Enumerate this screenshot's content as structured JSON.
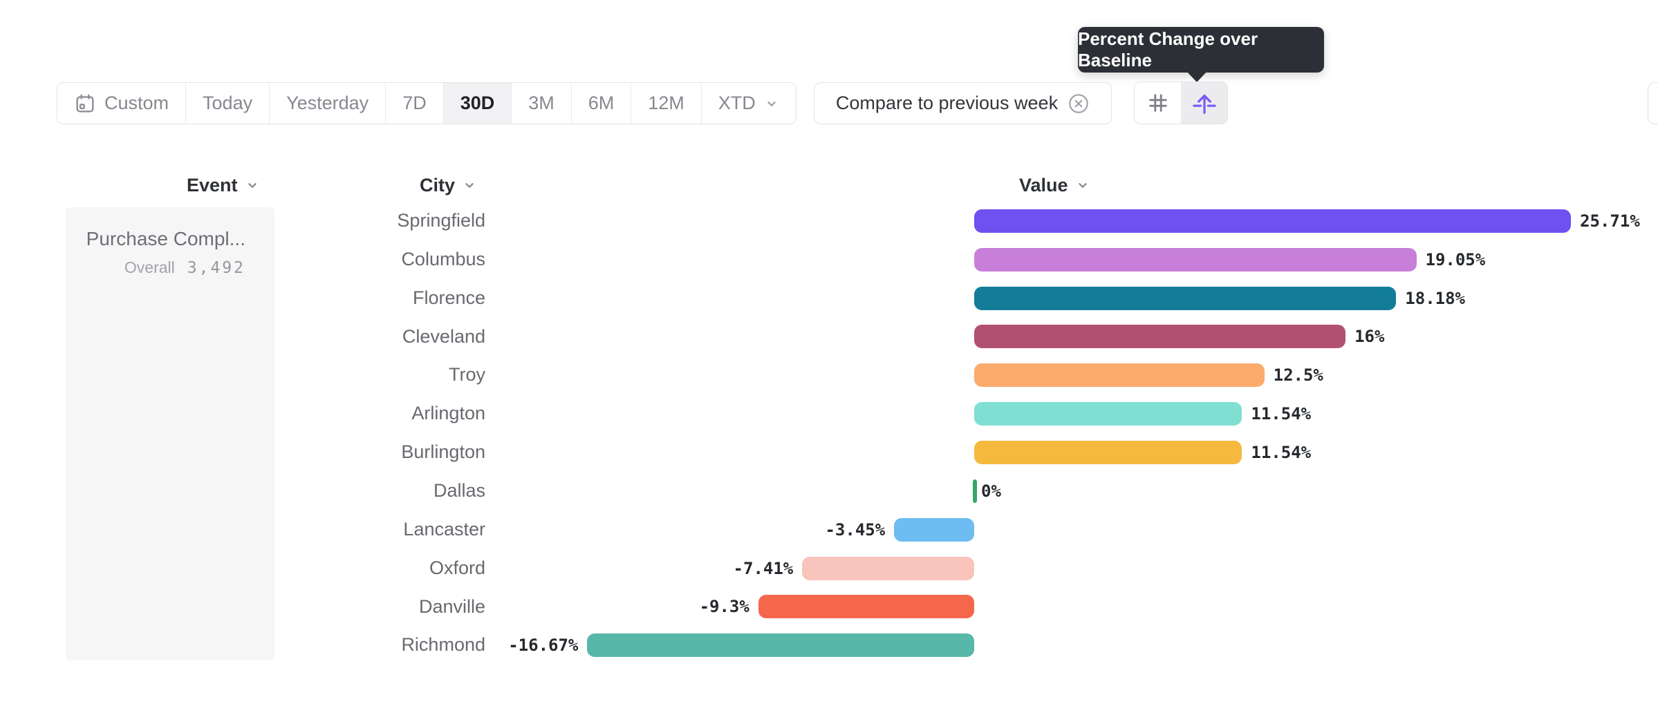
{
  "tooltip": {
    "text": "Percent Change over Baseline"
  },
  "toolbar": {
    "date_ranges": [
      {
        "label": "Custom",
        "icon": "calendar-icon",
        "active": false
      },
      {
        "label": "Today",
        "active": false
      },
      {
        "label": "Yesterday",
        "active": false
      },
      {
        "label": "7D",
        "active": false
      },
      {
        "label": "30D",
        "active": true
      },
      {
        "label": "3M",
        "active": false
      },
      {
        "label": "6M",
        "active": false
      },
      {
        "label": "12M",
        "active": false
      },
      {
        "label": "XTD",
        "chevron": true,
        "active": false
      }
    ],
    "compare": {
      "label": "Compare to previous week",
      "icon": "close-circle-icon"
    },
    "view_toggle": [
      {
        "name": "number-view",
        "icon": "hash-icon",
        "active": false
      },
      {
        "name": "baseline-change-view",
        "icon": "arrow-up-baseline-icon",
        "active": true
      }
    ],
    "accent_color": "#7b5cf5"
  },
  "columns": [
    {
      "label": "Event"
    },
    {
      "label": "City"
    },
    {
      "label": "Value"
    }
  ],
  "event_panel": {
    "event_name": "Purchase Compl...",
    "overall_label": "Overall",
    "overall_value": "3,492"
  },
  "chart_data": {
    "type": "bar",
    "orientation": "horizontal",
    "title": "Percent Change over Baseline",
    "xlabel": "",
    "ylabel": "",
    "baseline": 0,
    "categories": [
      "Springfield",
      "Columbus",
      "Florence",
      "Cleveland",
      "Troy",
      "Arlington",
      "Burlington",
      "Dallas",
      "Lancaster",
      "Oxford",
      "Danville",
      "Richmond"
    ],
    "values": [
      25.71,
      19.05,
      18.18,
      16,
      12.5,
      11.54,
      11.54,
      0,
      -3.45,
      -7.41,
      -9.3,
      -16.67
    ],
    "labels": [
      "25.71%",
      "19.05%",
      "18.18%",
      "16%",
      "12.5%",
      "11.54%",
      "11.54%",
      "0%",
      "-3.45%",
      "-7.41%",
      "-9.3%",
      "-16.67%"
    ],
    "colors": [
      "#6e51f1",
      "#c77fd9",
      "#137d98",
      "#b25071",
      "#fcab6c",
      "#7fdfd3",
      "#f6b93f",
      "#36a567",
      "#6dbcf2",
      "#f9c4bb",
      "#f5674a",
      "#57b7a8"
    ]
  }
}
